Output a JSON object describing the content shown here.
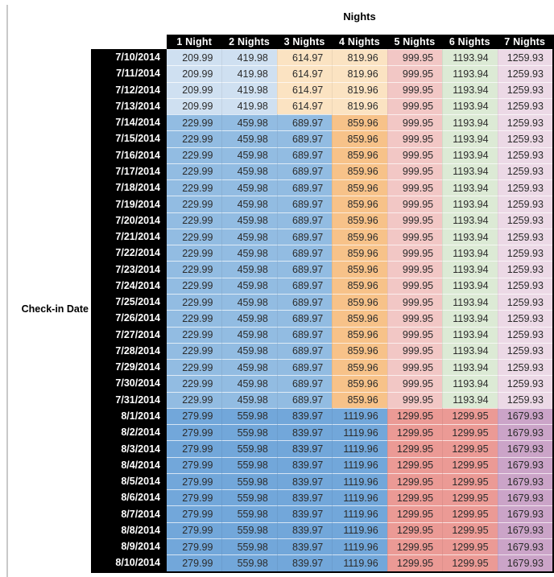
{
  "chart_data": {
    "type": "table",
    "title": "Nights",
    "row_axis_label": "Check-in Date",
    "columns": [
      "1 Night",
      "2 Nights",
      "3 Nights",
      "4 Nights",
      "5 Nights",
      "6 Nights",
      "7 Nights"
    ],
    "bands": {
      "early": [
        "light_blue",
        "light_blue",
        "light_tan",
        "light_tan",
        "pink",
        "green",
        "lavender"
      ],
      "mid": [
        "mid_blue",
        "mid_blue",
        "mid_blue",
        "mid_orange",
        "pink",
        "green",
        "lavender"
      ],
      "late": [
        "dark_blue",
        "dark_blue",
        "dark_blue",
        "dark_blue",
        "red",
        "red",
        "purple"
      ]
    },
    "rows": [
      {
        "date": "7/10/2014",
        "band": "early",
        "values": [
          209.99,
          419.98,
          614.97,
          819.96,
          999.95,
          1193.94,
          1259.93
        ]
      },
      {
        "date": "7/11/2014",
        "band": "early",
        "values": [
          209.99,
          419.98,
          614.97,
          819.96,
          999.95,
          1193.94,
          1259.93
        ]
      },
      {
        "date": "7/12/2014",
        "band": "early",
        "values": [
          209.99,
          419.98,
          614.97,
          819.96,
          999.95,
          1193.94,
          1259.93
        ]
      },
      {
        "date": "7/13/2014",
        "band": "early",
        "values": [
          209.99,
          419.98,
          614.97,
          819.96,
          999.95,
          1193.94,
          1259.93
        ]
      },
      {
        "date": "7/14/2014",
        "band": "mid",
        "values": [
          229.99,
          459.98,
          689.97,
          859.96,
          999.95,
          1193.94,
          1259.93
        ]
      },
      {
        "date": "7/15/2014",
        "band": "mid",
        "values": [
          229.99,
          459.98,
          689.97,
          859.96,
          999.95,
          1193.94,
          1259.93
        ]
      },
      {
        "date": "7/16/2014",
        "band": "mid",
        "values": [
          229.99,
          459.98,
          689.97,
          859.96,
          999.95,
          1193.94,
          1259.93
        ]
      },
      {
        "date": "7/17/2014",
        "band": "mid",
        "values": [
          229.99,
          459.98,
          689.97,
          859.96,
          999.95,
          1193.94,
          1259.93
        ]
      },
      {
        "date": "7/18/2014",
        "band": "mid",
        "values": [
          229.99,
          459.98,
          689.97,
          859.96,
          999.95,
          1193.94,
          1259.93
        ]
      },
      {
        "date": "7/19/2014",
        "band": "mid",
        "values": [
          229.99,
          459.98,
          689.97,
          859.96,
          999.95,
          1193.94,
          1259.93
        ]
      },
      {
        "date": "7/20/2014",
        "band": "mid",
        "values": [
          229.99,
          459.98,
          689.97,
          859.96,
          999.95,
          1193.94,
          1259.93
        ]
      },
      {
        "date": "7/21/2014",
        "band": "mid",
        "values": [
          229.99,
          459.98,
          689.97,
          859.96,
          999.95,
          1193.94,
          1259.93
        ]
      },
      {
        "date": "7/22/2014",
        "band": "mid",
        "values": [
          229.99,
          459.98,
          689.97,
          859.96,
          999.95,
          1193.94,
          1259.93
        ]
      },
      {
        "date": "7/23/2014",
        "band": "mid",
        "values": [
          229.99,
          459.98,
          689.97,
          859.96,
          999.95,
          1193.94,
          1259.93
        ]
      },
      {
        "date": "7/24/2014",
        "band": "mid",
        "values": [
          229.99,
          459.98,
          689.97,
          859.96,
          999.95,
          1193.94,
          1259.93
        ]
      },
      {
        "date": "7/25/2014",
        "band": "mid",
        "values": [
          229.99,
          459.98,
          689.97,
          859.96,
          999.95,
          1193.94,
          1259.93
        ]
      },
      {
        "date": "7/26/2014",
        "band": "mid",
        "values": [
          229.99,
          459.98,
          689.97,
          859.96,
          999.95,
          1193.94,
          1259.93
        ]
      },
      {
        "date": "7/27/2014",
        "band": "mid",
        "values": [
          229.99,
          459.98,
          689.97,
          859.96,
          999.95,
          1193.94,
          1259.93
        ]
      },
      {
        "date": "7/28/2014",
        "band": "mid",
        "values": [
          229.99,
          459.98,
          689.97,
          859.96,
          999.95,
          1193.94,
          1259.93
        ]
      },
      {
        "date": "7/29/2014",
        "band": "mid",
        "values": [
          229.99,
          459.98,
          689.97,
          859.96,
          999.95,
          1193.94,
          1259.93
        ]
      },
      {
        "date": "7/30/2014",
        "band": "mid",
        "values": [
          229.99,
          459.98,
          689.97,
          859.96,
          999.95,
          1193.94,
          1259.93
        ]
      },
      {
        "date": "7/31/2014",
        "band": "mid",
        "values": [
          229.99,
          459.98,
          689.97,
          859.96,
          999.95,
          1193.94,
          1259.93
        ]
      },
      {
        "date": "8/1/2014",
        "band": "late",
        "values": [
          279.99,
          559.98,
          839.97,
          1119.96,
          1299.95,
          1299.95,
          1679.93
        ]
      },
      {
        "date": "8/2/2014",
        "band": "late",
        "values": [
          279.99,
          559.98,
          839.97,
          1119.96,
          1299.95,
          1299.95,
          1679.93
        ]
      },
      {
        "date": "8/3/2014",
        "band": "late",
        "values": [
          279.99,
          559.98,
          839.97,
          1119.96,
          1299.95,
          1299.95,
          1679.93
        ]
      },
      {
        "date": "8/4/2014",
        "band": "late",
        "values": [
          279.99,
          559.98,
          839.97,
          1119.96,
          1299.95,
          1299.95,
          1679.93
        ]
      },
      {
        "date": "8/5/2014",
        "band": "late",
        "values": [
          279.99,
          559.98,
          839.97,
          1119.96,
          1299.95,
          1299.95,
          1679.93
        ]
      },
      {
        "date": "8/6/2014",
        "band": "late",
        "values": [
          279.99,
          559.98,
          839.97,
          1119.96,
          1299.95,
          1299.95,
          1679.93
        ]
      },
      {
        "date": "8/7/2014",
        "band": "late",
        "values": [
          279.99,
          559.98,
          839.97,
          1119.96,
          1299.95,
          1299.95,
          1679.93
        ]
      },
      {
        "date": "8/8/2014",
        "band": "late",
        "values": [
          279.99,
          559.98,
          839.97,
          1119.96,
          1299.95,
          1299.95,
          1679.93
        ]
      },
      {
        "date": "8/9/2014",
        "band": "late",
        "values": [
          279.99,
          559.98,
          839.97,
          1119.96,
          1299.95,
          1299.95,
          1679.93
        ]
      },
      {
        "date": "8/10/2014",
        "band": "late",
        "values": [
          279.99,
          559.98,
          839.97,
          1119.96,
          1299.95,
          1299.95,
          1679.93
        ]
      }
    ]
  },
  "colors": {
    "header_bg": "#000000",
    "header_text": "#ffffff",
    "cell_text": "#2b2b2b",
    "left_rule": "#c9c9c9",
    "light_blue": "#cfe0f1",
    "light_tan": "#fbe3c2",
    "mid_blue": "#92bce2",
    "mid_orange": "#f7c289",
    "pink": "#f2c7c5",
    "green": "#dcead5",
    "lavender": "#ecd9e6",
    "dark_blue": "#72a7da",
    "red": "#eb9a95",
    "purple": "#cba4c8"
  }
}
